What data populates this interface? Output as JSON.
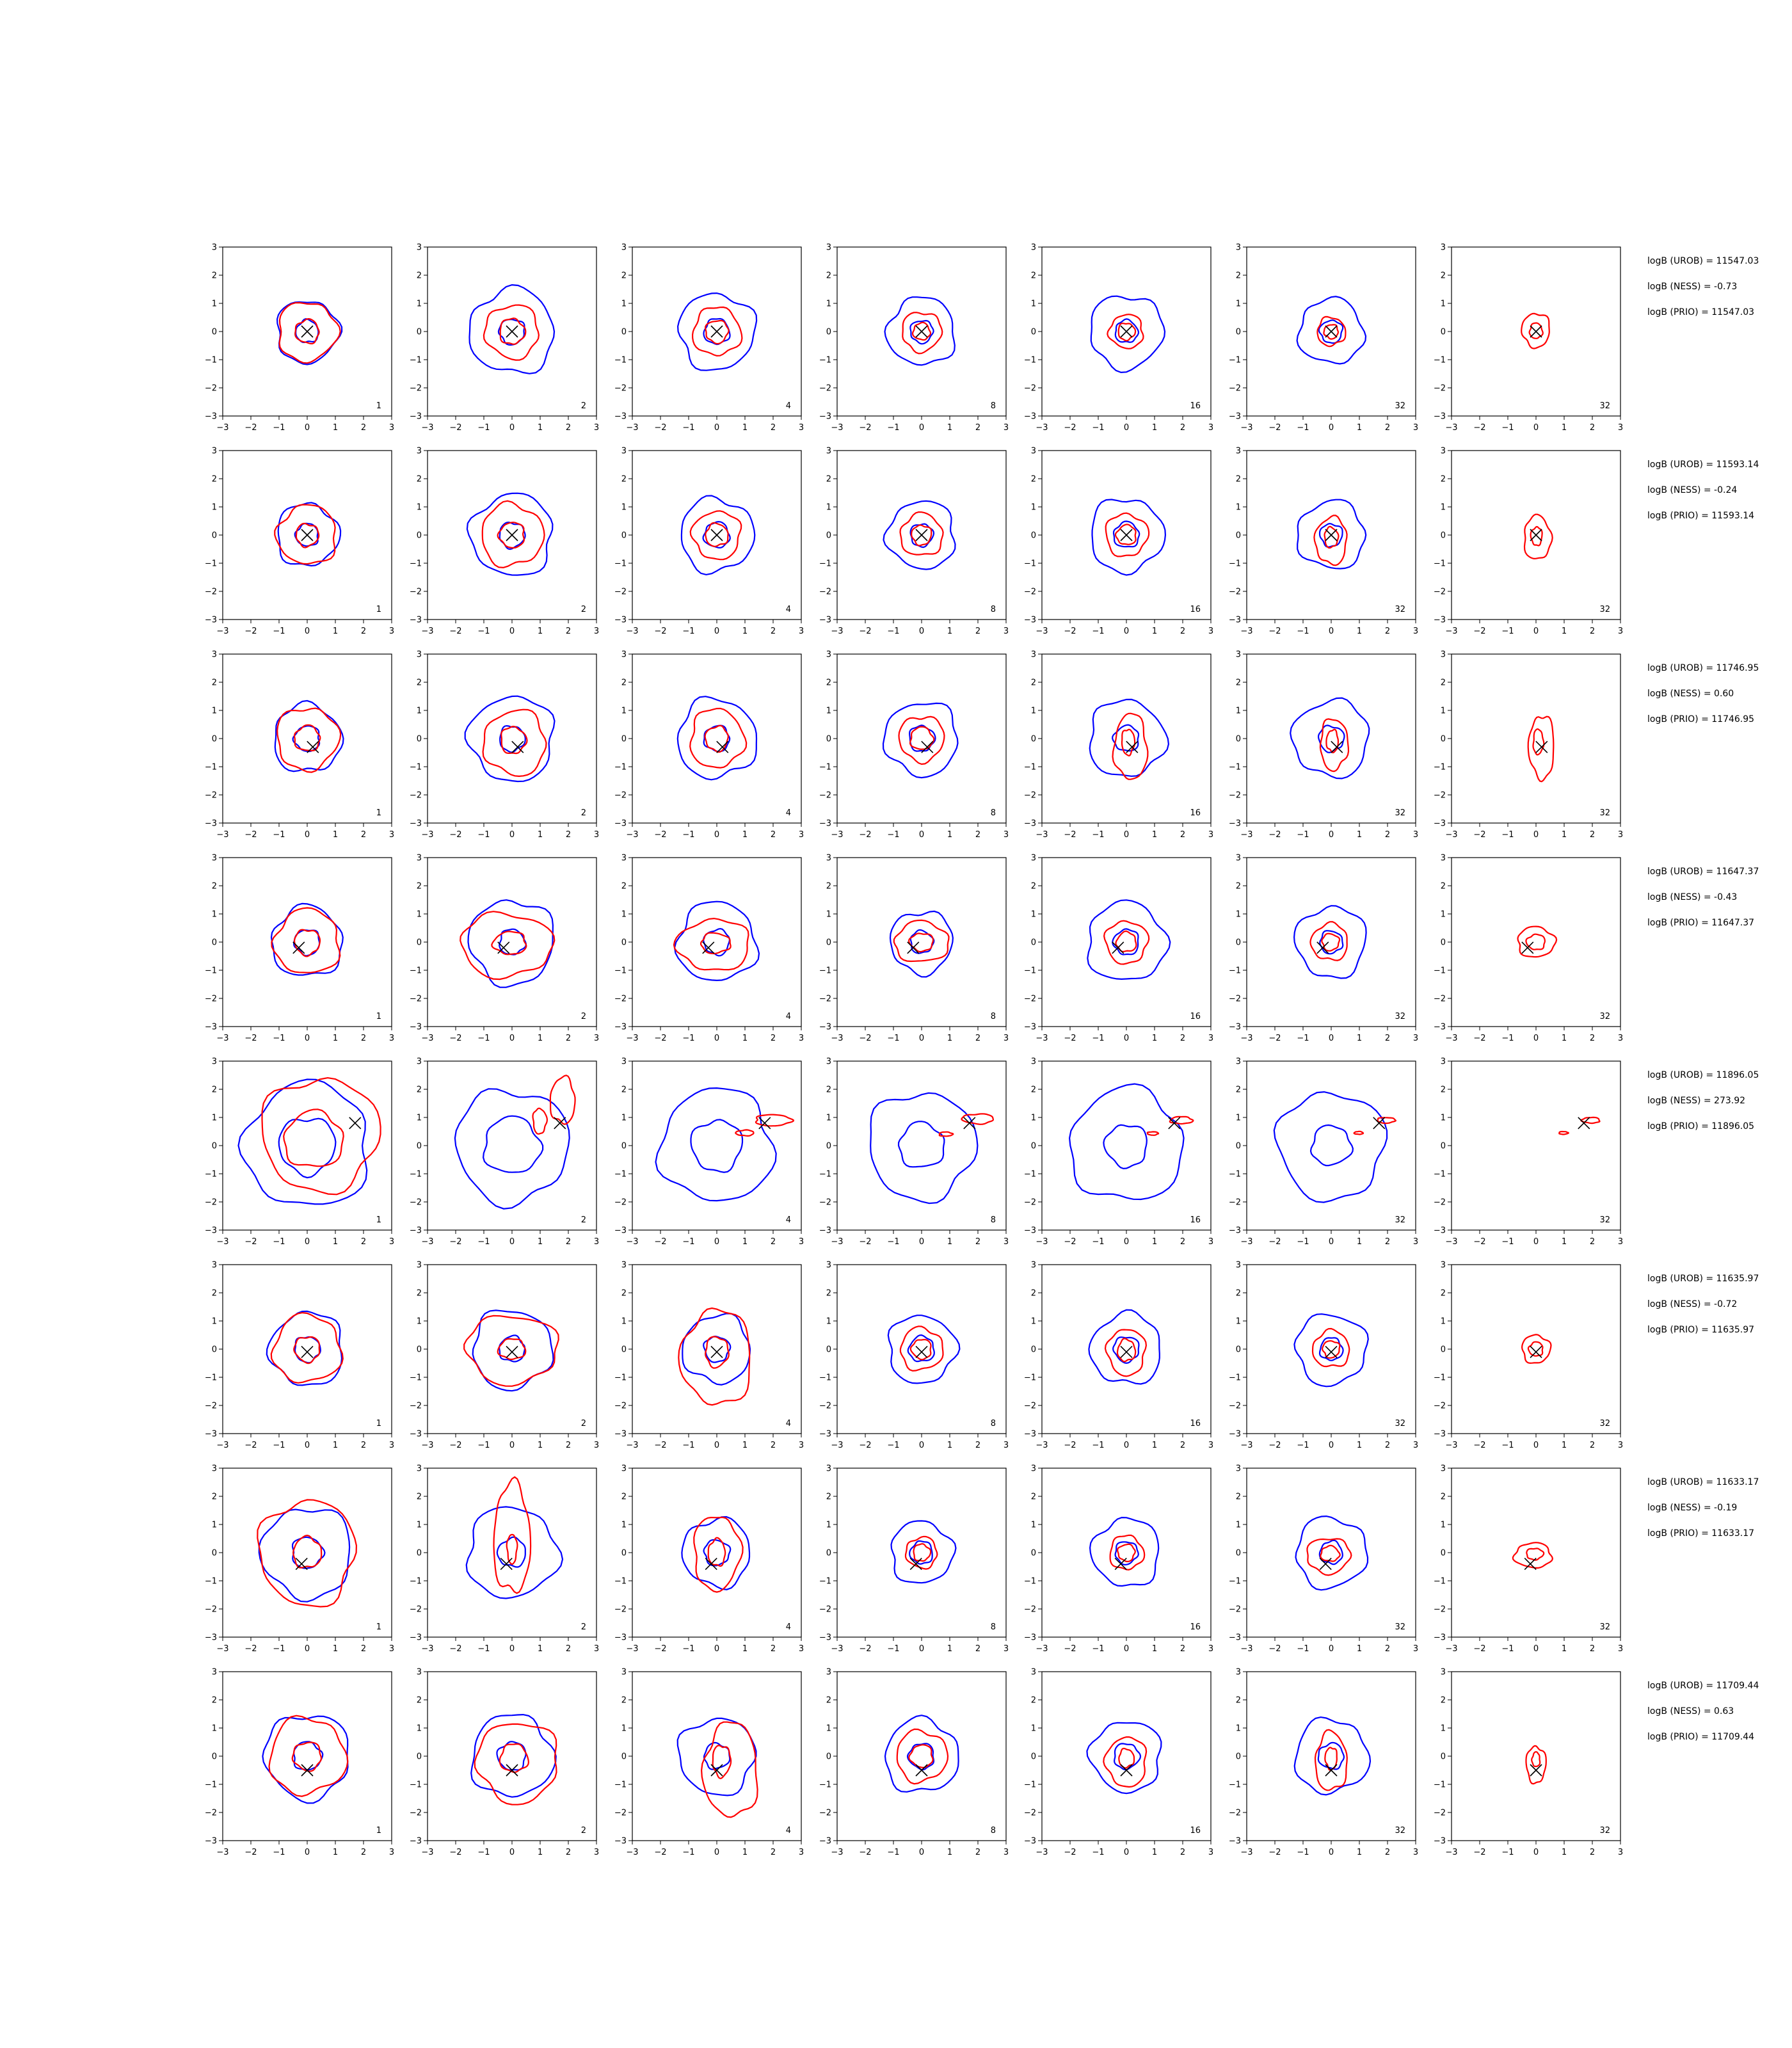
{
  "chart_data": {
    "type": "contour-grid",
    "rows": 8,
    "cols": 7,
    "xlim": [
      -3,
      3
    ],
    "ylim": [
      -3,
      3
    ],
    "ticks": [
      -3,
      -2,
      -1,
      0,
      1,
      2,
      3
    ],
    "tick_labels": [
      "−3",
      "−2",
      "−1",
      "0",
      "1",
      "2",
      "3"
    ],
    "column_labels": [
      "1",
      "2",
      "4",
      "8",
      "16",
      "32",
      "32"
    ],
    "colors": {
      "blue": "#0000ff",
      "red": "#ff0000",
      "marker": "#000000"
    },
    "rows_data": [
      {
        "marker": [
          0.0,
          0.0
        ],
        "stats": [
          "logB (UROB) = 11547.03",
          "logB (NESS) = -0.73",
          "logB (PRIO) = 11547.03"
        ],
        "panels": [
          {
            "blue": [
              1.1,
              0.4
            ],
            "red": [
              1.05,
              0.42,
              0.0,
              0.0,
              1.0,
              1.0
            ]
          },
          {
            "blue": [
              1.5,
              0.45
            ],
            "red": [
              0.95,
              0.45,
              0.0,
              0.0,
              1.0,
              1.0
            ]
          },
          {
            "blue": [
              1.35,
              0.45
            ],
            "red": [
              0.85,
              0.4,
              0.0,
              0.0,
              1.0,
              1.0
            ]
          },
          {
            "blue": [
              1.2,
              0.4
            ],
            "red": [
              0.7,
              0.3,
              0.0,
              0.0,
              1.0,
              1.0
            ]
          },
          {
            "blue": [
              1.3,
              0.4
            ],
            "red": [
              0.6,
              0.3,
              0.0,
              0.0,
              1.0,
              1.0
            ]
          },
          {
            "blue": [
              1.15,
              0.4
            ],
            "red": [
              0.5,
              0.25,
              0.0,
              0.0,
              1.0,
              1.0
            ]
          },
          {
            "blue": null,
            "red": [
              0.55,
              0.25,
              0.0,
              0.05,
              0.9,
              1.1
            ]
          }
        ]
      },
      {
        "marker": [
          0.0,
          0.0
        ],
        "stats": [
          "logB (UROB) = 11593.14",
          "logB (NESS) = -0.24",
          "logB (PRIO) = 11593.14"
        ],
        "panels": [
          {
            "blue": [
              1.1,
              0.4
            ],
            "red": [
              1.05,
              0.4,
              0.0,
              0.0,
              1.0,
              1.0
            ]
          },
          {
            "blue": [
              1.45,
              0.45
            ],
            "red": [
              1.1,
              0.45,
              0.0,
              0.0,
              1.0,
              1.0
            ]
          },
          {
            "blue": [
              1.3,
              0.45
            ],
            "red": [
              0.85,
              0.4,
              0.0,
              0.0,
              1.0,
              1.0
            ]
          },
          {
            "blue": [
              1.2,
              0.4
            ],
            "red": [
              0.75,
              0.35,
              0.0,
              0.0,
              1.0,
              1.0
            ]
          },
          {
            "blue": [
              1.3,
              0.45
            ],
            "red": [
              0.75,
              0.35,
              0.0,
              0.0,
              1.0,
              1.0
            ]
          },
          {
            "blue": [
              1.2,
              0.4
            ],
            "red": [
              0.7,
              0.3,
              0.0,
              -0.2,
              0.8,
              1.2
            ]
          },
          {
            "blue": null,
            "red": [
              0.6,
              0.25,
              0.05,
              -0.1,
              0.8,
              1.3
            ]
          }
        ]
      },
      {
        "marker": [
          0.2,
          -0.3
        ],
        "stats": [
          "logB (UROB) = 11746.95",
          "logB (NESS) = 0.60",
          "logB (PRIO) = 11746.95"
        ],
        "panels": [
          {
            "blue": [
              1.2,
              0.45
            ],
            "red": [
              1.1,
              0.45,
              0.0,
              0.0,
              1.0,
              1.0
            ]
          },
          {
            "blue": [
              1.5,
              0.45
            ],
            "red": [
              1.1,
              0.45,
              0.1,
              -0.15,
              1.0,
              1.05
            ]
          },
          {
            "blue": [
              1.4,
              0.45
            ],
            "red": [
              0.95,
              0.4,
              0.0,
              0.0,
              1.0,
              1.1
            ]
          },
          {
            "blue": [
              1.3,
              0.45
            ],
            "red": [
              0.8,
              0.4,
              0.0,
              0.0,
              1.0,
              1.0
            ]
          },
          {
            "blue": [
              1.35,
              0.45
            ],
            "red": [
              0.9,
              0.35,
              0.15,
              -0.3,
              0.65,
              1.3
            ]
          },
          {
            "blue": [
              1.35,
              0.45
            ],
            "red": [
              0.7,
              0.3,
              0.1,
              -0.2,
              0.7,
              1.3
            ]
          },
          {
            "blue": null,
            "red": [
              0.75,
              0.3,
              0.2,
              -0.3,
              0.6,
              1.5
            ]
          }
        ]
      },
      {
        "marker": [
          -0.3,
          -0.2
        ],
        "stats": [
          "logB (UROB) = 11647.37",
          "logB (NESS) = -0.43",
          "logB (PRIO) = 11647.37"
        ],
        "panels": [
          {
            "blue": [
              1.25,
              0.45
            ],
            "red": [
              1.15,
              0.45,
              0.0,
              0.0,
              1.0,
              1.0
            ]
          },
          {
            "blue": [
              1.5,
              0.45
            ],
            "red": [
              1.25,
              0.45,
              -0.2,
              -0.1,
              1.3,
              0.9
            ]
          },
          {
            "blue": [
              1.4,
              0.45
            ],
            "red": [
              1.0,
              0.4,
              -0.1,
              -0.1,
              1.3,
              0.9
            ]
          },
          {
            "blue": [
              1.1,
              0.4
            ],
            "red": [
              0.8,
              0.35,
              0.0,
              0.0,
              1.2,
              0.9
            ]
          },
          {
            "blue": [
              1.4,
              0.45
            ],
            "red": [
              0.75,
              0.35,
              0.0,
              0.0,
              1.0,
              1.0
            ]
          },
          {
            "blue": [
              1.25,
              0.4
            ],
            "red": [
              0.65,
              0.3,
              -0.05,
              0.0,
              1.0,
              1.0
            ]
          },
          {
            "blue": null,
            "red": [
              0.6,
              0.3,
              0.0,
              0.0,
              1.1,
              0.9
            ]
          }
        ]
      },
      {
        "marker": [
          1.7,
          0.8
        ],
        "stats": [
          "logB (UROB) = 11896.05",
          "logB (NESS) = 273.92",
          "logB (PRIO) = 11896.05"
        ],
        "panels": [
          {
            "blue": [
              2.2,
              1.0
            ],
            "red": [
              1.9,
              0.95,
              0.45,
              0.4,
              1.1,
              1.05
            ]
          },
          {
            "blue": [
              2.0,
              1.0
            ],
            "red": [
              0.55,
              0.3,
              1.8,
              1.6,
              0.8,
              1.5
            ]
          },
          {
            "blue": [
              2.0,
              0.9
            ],
            "red": [
              0.4,
              0.2,
              2.0,
              0.9,
              1.6,
              0.5
            ]
          },
          {
            "blue": [
              1.9,
              0.8
            ],
            "red": [
              0.35,
              0.15,
              2.0,
              0.95,
              1.6,
              0.5
            ]
          },
          {
            "blue": [
              2.0,
              0.75
            ],
            "red": [
              0.25,
              0.12,
              1.95,
              0.9,
              1.6,
              0.5
            ]
          },
          {
            "blue": [
              1.9,
              0.7
            ],
            "red": [
              0.2,
              0.1,
              1.95,
              0.9,
              1.6,
              0.5
            ]
          },
          {
            "blue": null,
            "red": [
              0.2,
              0.1,
              1.95,
              0.9,
              1.6,
              0.5
            ]
          }
        ]
      },
      {
        "marker": [
          0.0,
          -0.1
        ],
        "stats": [
          "logB (UROB) = 11635.97",
          "logB (NESS) = -0.72",
          "logB (PRIO) = 11635.97"
        ],
        "panels": [
          {
            "blue": [
              1.3,
              0.45
            ],
            "red": [
              1.2,
              0.45,
              0.0,
              0.0,
              1.0,
              1.0
            ]
          },
          {
            "blue": [
              1.4,
              0.45
            ],
            "red": [
              1.35,
              0.4,
              0.0,
              0.0,
              1.2,
              0.9
            ]
          },
          {
            "blue": [
              1.2,
              0.45
            ],
            "red": [
              1.4,
              0.45,
              0.0,
              -0.3,
              0.9,
              1.2
            ]
          },
          {
            "blue": [
              1.2,
              0.45
            ],
            "red": [
              0.75,
              0.35,
              0.0,
              0.0,
              1.0,
              1.0
            ]
          },
          {
            "blue": [
              1.25,
              0.45
            ],
            "red": [
              0.75,
              0.35,
              0.0,
              -0.1,
              0.9,
              1.1
            ]
          },
          {
            "blue": [
              1.25,
              0.4
            ],
            "red": [
              0.65,
              0.3,
              0.0,
              0.0,
              1.0,
              1.0
            ]
          },
          {
            "blue": null,
            "red": [
              0.5,
              0.25,
              0.0,
              0.0,
              1.0,
              1.0
            ]
          }
        ]
      },
      {
        "marker": [
          -0.2,
          -0.4
        ],
        "stats": [
          "logB (UROB) = 11633.17",
          "logB (NESS) = -0.19",
          "logB (PRIO) = 11633.17"
        ],
        "panels": [
          {
            "blue": [
              1.6,
              0.55
            ],
            "red": [
              1.7,
              0.5,
              0.0,
              0.0,
              1.0,
              1.1
            ]
          },
          {
            "blue": [
              1.6,
              0.5
            ],
            "red": [
              1.3,
              0.35,
              0.0,
              0.5,
              0.5,
              1.5
            ]
          },
          {
            "blue": [
              1.2,
              0.45
            ],
            "red": [
              1.1,
              0.4,
              0.0,
              0.0,
              0.75,
              1.2
            ]
          },
          {
            "blue": [
              1.1,
              0.4
            ],
            "red": [
              0.55,
              0.3,
              0.0,
              0.0,
              1.0,
              1.0
            ]
          },
          {
            "blue": [
              1.2,
              0.4
            ],
            "red": [
              0.6,
              0.3,
              0.0,
              0.0,
              1.0,
              1.0
            ]
          },
          {
            "blue": [
              1.25,
              0.4
            ],
            "red": [
              0.7,
              0.3,
              -0.1,
              -0.1,
              1.1,
              0.9
            ]
          },
          {
            "blue": null,
            "red": [
              0.55,
              0.25,
              -0.1,
              -0.1,
              1.2,
              0.8
            ]
          }
        ]
      },
      {
        "marker": [
          0.0,
          -0.5
        ],
        "stats": [
          "logB (UROB) = 11709.44",
          "logB (NESS) = 0.63",
          "logB (PRIO) = 11709.44"
        ],
        "panels": [
          {
            "blue": [
              1.5,
              0.5
            ],
            "red": [
              1.35,
              0.5,
              0.0,
              0.0,
              1.0,
              1.0
            ]
          },
          {
            "blue": [
              1.45,
              0.5
            ],
            "red": [
              1.3,
              0.45,
              0.2,
              -0.2,
              1.1,
              1.1
            ]
          },
          {
            "blue": [
              1.35,
              0.45
            ],
            "red": [
              1.2,
              0.4,
              0.5,
              -0.5,
              0.8,
              1.4
            ]
          },
          {
            "blue": [
              1.3,
              0.45
            ],
            "red": [
              0.9,
              0.4,
              0.0,
              0.0,
              1.0,
              1.0
            ]
          },
          {
            "blue": [
              1.25,
              0.45
            ],
            "red": [
              0.8,
              0.3,
              0.0,
              -0.2,
              0.9,
              1.1
            ]
          },
          {
            "blue": [
              1.3,
              0.45
            ],
            "red": [
              0.8,
              0.3,
              0.0,
              -0.2,
              0.7,
              1.3
            ]
          },
          {
            "blue": null,
            "red": [
              0.5,
              0.2,
              0.0,
              -0.3,
              0.7,
              1.3
            ]
          }
        ]
      }
    ]
  }
}
